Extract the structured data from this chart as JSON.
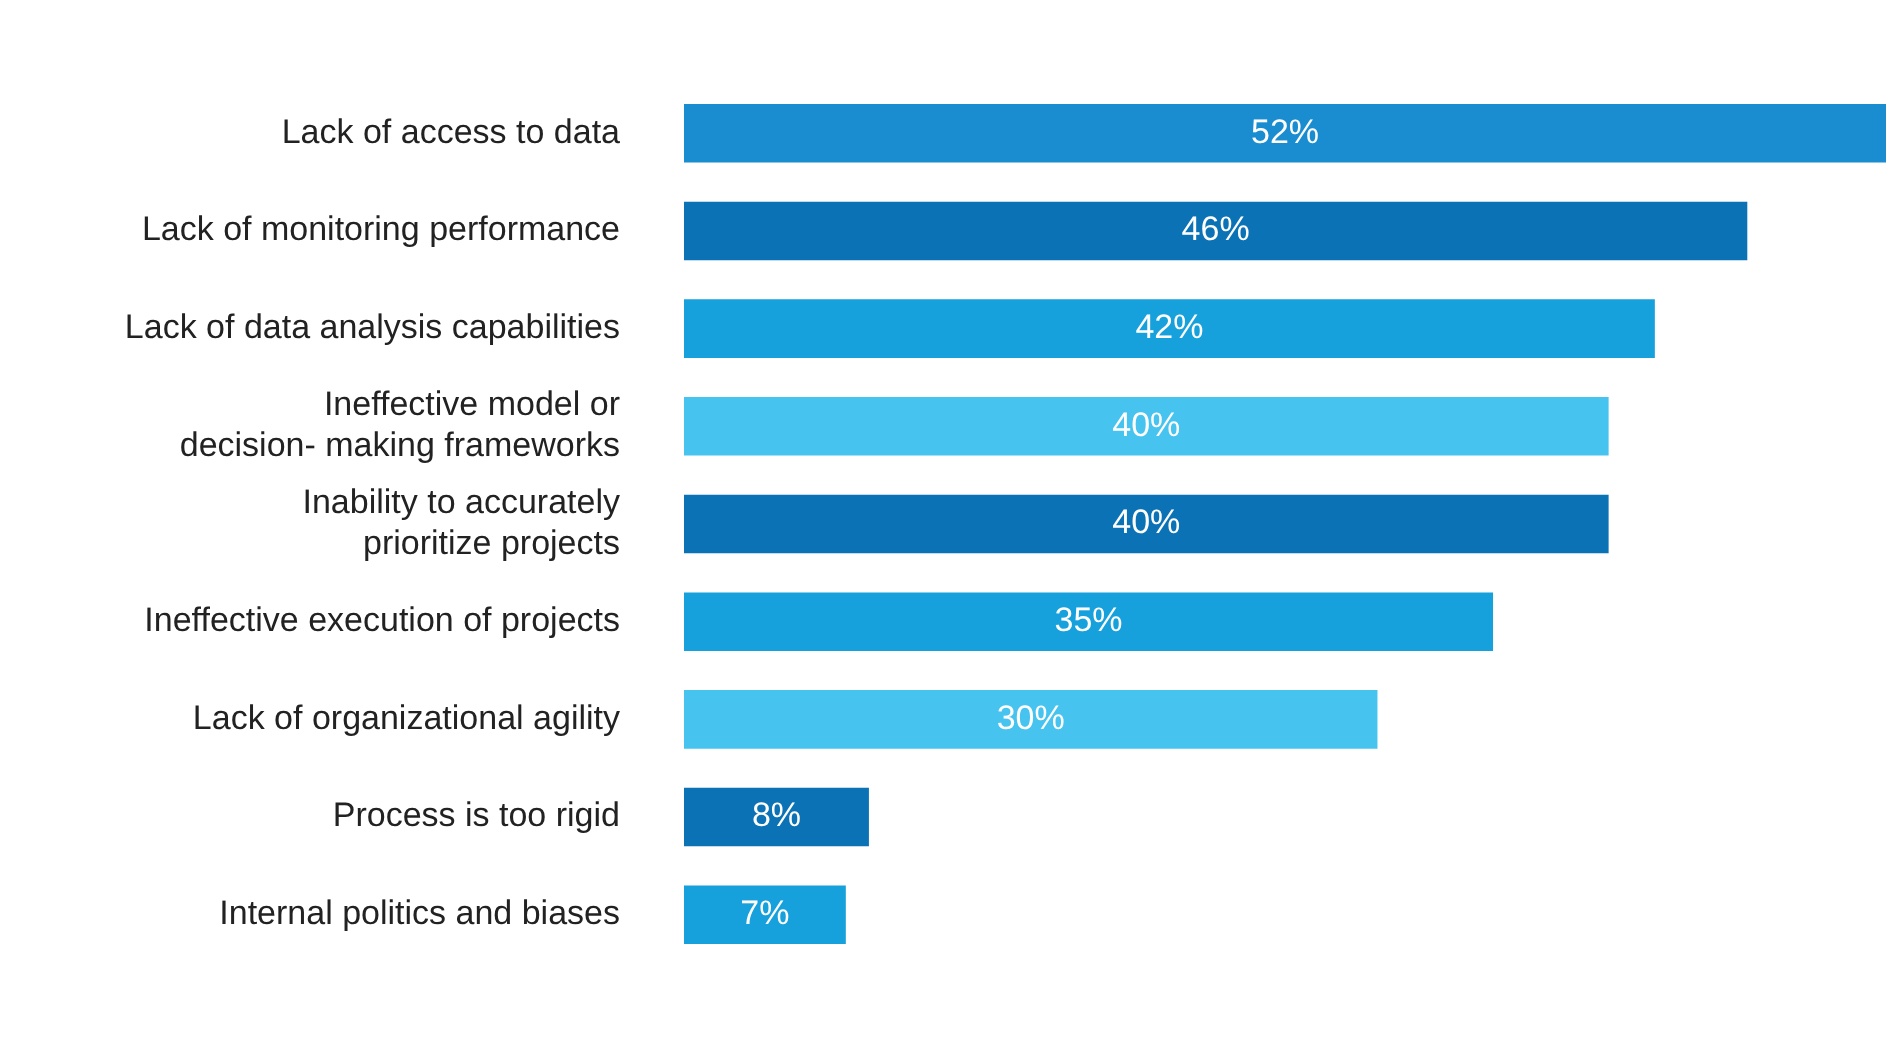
{
  "chart_data": {
    "type": "bar",
    "orientation": "horizontal",
    "grid": false,
    "legend": false,
    "categories": [
      "Lack of access to data",
      "Lack of monitoring performance",
      "Lack of data analysis capabilities",
      "Ineffective model or\ndecision- making frameworks",
      "Inability to accurately\nprioritize projects",
      "Ineffective execution of projects",
      "Lack of organizational agility",
      "Process is too rigid",
      "Internal politics and biases"
    ],
    "values": [
      52,
      46,
      42,
      40,
      40,
      35,
      30,
      8,
      7
    ],
    "colors": [
      "#1a8dd0",
      "#0b72b5",
      "#16a0dc",
      "#46c3ee",
      "#0b72b5",
      "#16a0dc",
      "#46c3ee",
      "#0b72b5",
      "#16a0dc"
    ],
    "value_labels": [
      "52%",
      "46%",
      "42%",
      "40%",
      "40%",
      "35%",
      "30%",
      "8%",
      "7%"
    ]
  }
}
